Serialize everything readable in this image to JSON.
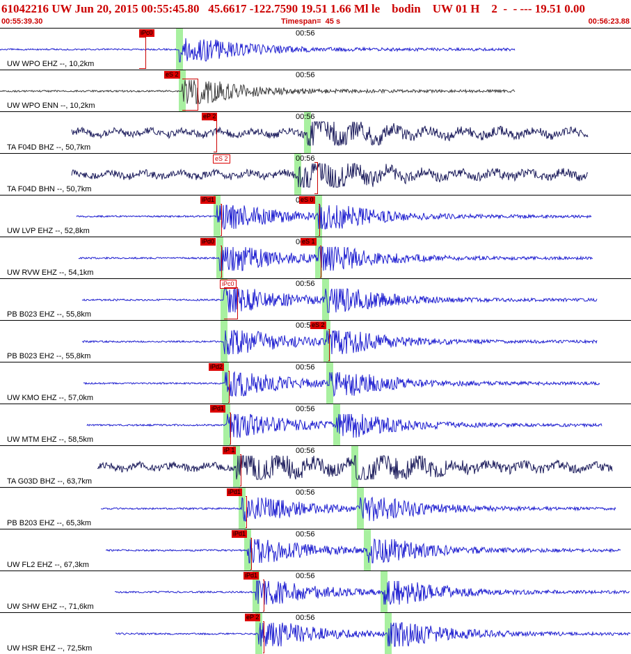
{
  "header": {
    "title": "61042216 UW Jun 20, 2015 00:55:45.80   45.6617 -122.7590 19.51 1.66 Ml le    bodin    UW 01 H    2  -  - --- 19.51 0.00",
    "start_time": "00:55:39.30",
    "timespan": "Timespan=  45 s",
    "end_time": "00:56:23.88"
  },
  "colors": {
    "trace_blue": "#1f1fd0",
    "trace_gray": "#3c3c3c",
    "trace_navy": "#1c1c5c",
    "pick_red": "#dd0000",
    "window_green": "#a8f0a0"
  },
  "traces": [
    {
      "label": "UW WPO EHZ --, 10,2km",
      "tick": "00:56",
      "color": "blue",
      "picks": [
        {
          "text": "iPc0",
          "style": "solid"
        }
      ],
      "picks2": []
    },
    {
      "label": "UW WPO ENN --, 10,2km",
      "tick": "00:56",
      "color": "gray",
      "picks": [
        {
          "text": "eS 2",
          "style": "solid"
        }
      ],
      "picks2": []
    },
    {
      "label": "TA F04D BHZ --, 50,7km",
      "tick": "00:56",
      "color": "navy",
      "picks": [
        {
          "text": "eP 2",
          "style": "solid"
        }
      ],
      "picks2": []
    },
    {
      "label": "TA F04D BHN --, 50,7km",
      "tick": "00:56",
      "color": "navy",
      "picks": [
        {
          "text": "eS 2",
          "style": "light"
        }
      ],
      "picks2": []
    },
    {
      "label": "UW LVP EHZ --, 52,8km",
      "tick": "00:56",
      "color": "blue",
      "picks": [
        {
          "text": "iPd1",
          "style": "solid"
        },
        {
          "text": "eS 0",
          "style": "solid"
        }
      ],
      "picks2": []
    },
    {
      "label": "UW RVW EHZ --, 54,1km",
      "tick": "00:56",
      "color": "blue",
      "picks": [
        {
          "text": "iPd0",
          "style": "solid"
        },
        {
          "text": "eS 1",
          "style": "solid"
        }
      ],
      "picks2": []
    },
    {
      "label": "PB B023 EHZ --, 55,8km",
      "tick": "00:56",
      "color": "blue",
      "picks": [
        {
          "text": "iPc0",
          "style": "light"
        }
      ],
      "picks2": []
    },
    {
      "label": "PB B023 EH2 --, 55,8km",
      "tick": "00:56",
      "color": "blue",
      "picks": [
        {
          "text": "eS 2",
          "style": "solid"
        }
      ],
      "picks2": []
    },
    {
      "label": "UW KMO EHZ --, 57,0km",
      "tick": "00:56",
      "color": "blue",
      "picks": [
        {
          "text": "iPd2",
          "style": "solid"
        }
      ],
      "picks2": []
    },
    {
      "label": "UW MTM EHZ --, 58,5km",
      "tick": "00:56",
      "color": "blue",
      "picks": [
        {
          "text": "iPd1",
          "style": "solid"
        }
      ],
      "picks2": []
    },
    {
      "label": "TA G03D BHZ --, 63,7km",
      "tick": "00:56",
      "color": "navy",
      "picks": [
        {
          "text": "iP 1",
          "style": "solid"
        }
      ],
      "picks2": []
    },
    {
      "label": "PB B203 EHZ --, 65,3km",
      "tick": "00:56",
      "color": "blue",
      "picks": [
        {
          "text": "iPd1",
          "style": "solid"
        }
      ],
      "picks2": []
    },
    {
      "label": "UW FL2 EHZ --, 67,3km",
      "tick": "00:56",
      "color": "blue",
      "picks": [
        {
          "text": "iPd1",
          "style": "solid"
        }
      ],
      "picks2": []
    },
    {
      "label": "UW SHW EHZ --, 71,6km",
      "tick": "00:56",
      "color": "blue",
      "picks": [
        {
          "text": "iPd1",
          "style": "solid"
        }
      ],
      "picks2": []
    },
    {
      "label": "UW HSR EHZ --, 72,5km",
      "tick": "00:56",
      "color": "blue",
      "picks": [
        {
          "text": "eP 2",
          "style": "solid"
        }
      ],
      "picks2": []
    }
  ]
}
